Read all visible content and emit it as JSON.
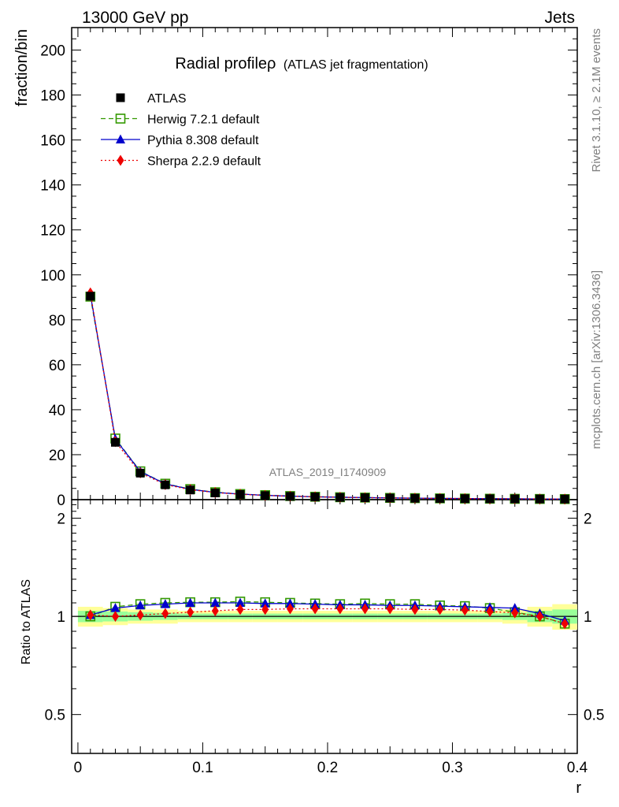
{
  "header": {
    "left": "13000 GeV pp",
    "right": "Jets"
  },
  "side_labels": {
    "rivet": "Rivet 3.1.10, ≥ 2.1M events",
    "mcplots": "mcplots.cern.ch [arXiv:1306.3436]"
  },
  "watermark": "ATLAS_2019_I1740909",
  "chart_data": [
    {
      "type": "line",
      "title": "Radial profileρ",
      "subtitle": "(ATLAS jet fragmentation)",
      "ylabel": "fraction/bin",
      "ylim": [
        0,
        210
      ],
      "xlim": [
        -0.005,
        0.4
      ],
      "yticks": [
        0,
        20,
        40,
        60,
        80,
        100,
        120,
        140,
        160,
        180,
        200
      ],
      "ytick_labels": [
        "0",
        "20",
        "40",
        "60",
        "80",
        "100",
        "120",
        "140",
        "160",
        "180",
        "200"
      ],
      "legend_position": "top-left",
      "x": [
        0.01,
        0.03,
        0.05,
        0.07,
        0.09,
        0.11,
        0.13,
        0.15,
        0.17,
        0.19,
        0.21,
        0.23,
        0.25,
        0.27,
        0.29,
        0.31,
        0.33,
        0.35,
        0.37,
        0.39
      ],
      "series": [
        {
          "name": "ATLAS",
          "color": "#000000",
          "marker": "square-filled",
          "values": [
            90.5,
            25.5,
            11.8,
            6.6,
            4.3,
            3.0,
            2.3,
            1.8,
            1.45,
            1.2,
            1.0,
            0.85,
            0.72,
            0.62,
            0.53,
            0.46,
            0.4,
            0.35,
            0.31,
            0.27
          ]
        },
        {
          "name": "Herwig 7.2.1 default",
          "color": "#339900",
          "marker": "square-open",
          "dash": "dashed",
          "values": [
            90.3,
            27.2,
            12.6,
            7.1,
            4.7,
            3.3,
            2.5,
            2.0,
            1.6,
            1.3,
            1.08,
            0.92,
            0.78,
            0.67,
            0.57,
            0.49,
            0.42,
            0.36,
            0.31,
            0.26
          ]
        },
        {
          "name": "Pythia 8.308 default",
          "color": "#0000cc",
          "marker": "triangle",
          "dash": "solid",
          "values": [
            91.2,
            26.9,
            12.5,
            7.0,
            4.6,
            3.2,
            2.5,
            1.9,
            1.55,
            1.28,
            1.07,
            0.91,
            0.77,
            0.66,
            0.57,
            0.49,
            0.42,
            0.37,
            0.31,
            0.26
          ]
        },
        {
          "name": "Sherpa 2.2.9 default",
          "color": "#ee0000",
          "marker": "diamond",
          "dash": "dotted",
          "values": [
            92.0,
            25.8,
            11.9,
            6.7,
            4.45,
            3.15,
            2.4,
            1.9,
            1.53,
            1.26,
            1.05,
            0.89,
            0.75,
            0.65,
            0.56,
            0.48,
            0.41,
            0.36,
            0.31,
            0.26
          ]
        }
      ]
    },
    {
      "type": "line",
      "ylabel": "Ratio to ATLAS",
      "xlabel": "r",
      "ylim": [
        0.38,
        2.28
      ],
      "xlim": [
        -0.005,
        0.4
      ],
      "yticks": [
        0.5,
        1,
        2
      ],
      "ytick_labels": [
        "0.5",
        "1",
        "2"
      ],
      "xticks": [
        0,
        0.1,
        0.2,
        0.3,
        0.4
      ],
      "xtick_labels": [
        "0",
        "0.1",
        "0.2",
        "0.3",
        "0.4"
      ],
      "x": [
        0.01,
        0.03,
        0.05,
        0.07,
        0.09,
        0.11,
        0.13,
        0.15,
        0.17,
        0.19,
        0.21,
        0.23,
        0.25,
        0.27,
        0.29,
        0.31,
        0.33,
        0.35,
        0.37,
        0.39
      ],
      "uncertainty_bands": {
        "outer": [
          1.07,
          1.06,
          1.05,
          1.05,
          1.04,
          1.04,
          1.04,
          1.04,
          1.04,
          1.04,
          1.04,
          1.04,
          1.04,
          1.04,
          1.04,
          1.04,
          1.04,
          1.05,
          1.07,
          1.09
        ],
        "inner": [
          1.04,
          1.035,
          1.03,
          1.025,
          1.02,
          1.02,
          1.02,
          1.02,
          1.02,
          1.02,
          1.02,
          1.02,
          1.02,
          1.02,
          1.02,
          1.02,
          1.02,
          1.025,
          1.04,
          1.05
        ],
        "outer_color": "#ffff99",
        "inner_color": "#99ff99"
      },
      "series": [
        {
          "name": "ATLAS",
          "color": "#000000",
          "values": [
            1,
            1,
            1,
            1,
            1,
            1,
            1,
            1,
            1,
            1,
            1,
            1,
            1,
            1,
            1,
            1,
            1,
            1,
            1,
            1
          ]
        },
        {
          "name": "Herwig 7.2.1 default",
          "color": "#339900",
          "marker": "square-open",
          "dash": "dashed",
          "values": [
            1.0,
            1.07,
            1.09,
            1.1,
            1.105,
            1.105,
            1.11,
            1.105,
            1.1,
            1.095,
            1.09,
            1.095,
            1.09,
            1.09,
            1.08,
            1.075,
            1.06,
            1.03,
            1.0,
            0.95
          ]
        },
        {
          "name": "Pythia 8.308 default",
          "color": "#0000cc",
          "marker": "triangle",
          "dash": "solid",
          "values": [
            1.01,
            1.06,
            1.08,
            1.09,
            1.1,
            1.1,
            1.1,
            1.095,
            1.095,
            1.09,
            1.085,
            1.085,
            1.08,
            1.08,
            1.075,
            1.07,
            1.065,
            1.06,
            1.02,
            0.97
          ]
        },
        {
          "name": "Sherpa 2.2.9 default",
          "color": "#ee0000",
          "marker": "diamond",
          "dash": "dotted",
          "values": [
            1.01,
            1.0,
            1.01,
            1.02,
            1.03,
            1.04,
            1.05,
            1.05,
            1.055,
            1.055,
            1.055,
            1.055,
            1.055,
            1.05,
            1.05,
            1.045,
            1.035,
            1.025,
            1.0,
            0.95
          ]
        }
      ]
    }
  ]
}
